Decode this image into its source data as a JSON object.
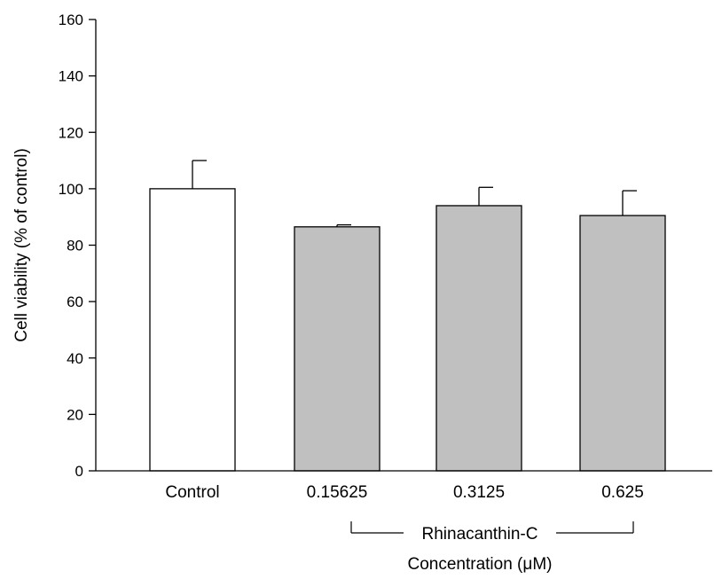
{
  "chart_data": {
    "type": "bar",
    "categories": [
      "Control",
      "0.15625",
      "0.3125",
      "0.625"
    ],
    "values": [
      100,
      86.5,
      94,
      90.5
    ],
    "errors": [
      10,
      0.7,
      6.5,
      8.8
    ],
    "ylabel": "Cell viability (% of control)",
    "xlabel": "Concentration (μM)",
    "group_label": "Rhinacanthin-C",
    "group_categories": [
      "0.15625",
      "0.3125",
      "0.625"
    ],
    "ylim": [
      0,
      160
    ],
    "yticks": [
      0,
      20,
      40,
      60,
      80,
      100,
      120,
      140,
      160
    ],
    "grid": false,
    "legend": "none",
    "bar_colors": [
      "#ffffff",
      "#c0c0c0",
      "#c0c0c0",
      "#c0c0c0"
    ],
    "edge_color": "#000000"
  }
}
